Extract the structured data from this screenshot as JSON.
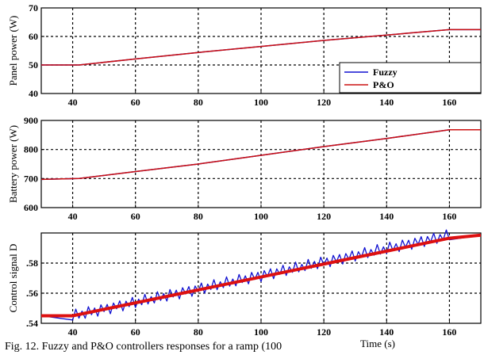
{
  "chart_data": [
    {
      "type": "line",
      "ylabel": "Panel power (W)",
      "xlim": [
        30,
        170
      ],
      "ylim": [
        40,
        70
      ],
      "xticks": [
        40,
        60,
        80,
        100,
        120,
        140,
        160
      ],
      "yticks": [
        40,
        50,
        60,
        70
      ],
      "grid": true,
      "legend": {
        "position": "bottom-right",
        "entries": [
          "Fuzzy",
          "P&O"
        ]
      },
      "series": [
        {
          "name": "Fuzzy",
          "color": "#1010d0",
          "x": [
            30,
            42,
            60,
            80,
            100,
            120,
            140,
            160,
            170
          ],
          "y": [
            50,
            50,
            52.1,
            54.4,
            56.5,
            58.6,
            60.5,
            62.4,
            62.4
          ]
        },
        {
          "name": "P&O",
          "color": "#cc1010",
          "x": [
            30,
            42,
            60,
            80,
            100,
            120,
            140,
            160,
            170
          ],
          "y": [
            50,
            50,
            52.1,
            54.4,
            56.5,
            58.6,
            60.5,
            62.4,
            62.4
          ]
        }
      ]
    },
    {
      "type": "line",
      "ylabel": "Battery power (W)",
      "xlim": [
        30,
        170
      ],
      "ylim": [
        600,
        900
      ],
      "xticks": [
        40,
        60,
        80,
        100,
        120,
        140,
        160
      ],
      "yticks": [
        600,
        700,
        800,
        900
      ],
      "grid": true,
      "series": [
        {
          "name": "Fuzzy",
          "color": "#1010d0",
          "x": [
            30,
            42,
            60,
            80,
            100,
            120,
            140,
            160,
            170
          ],
          "y": [
            697,
            700,
            724,
            750,
            780,
            810,
            838,
            868,
            868
          ]
        },
        {
          "name": "P&O",
          "color": "#cc1010",
          "x": [
            30,
            42,
            60,
            80,
            100,
            120,
            140,
            160,
            170
          ],
          "y": [
            697,
            700,
            724,
            750,
            780,
            810,
            838,
            868,
            868
          ]
        }
      ]
    },
    {
      "type": "line",
      "ylabel": "Control signal D",
      "xlabel": "Time (s)",
      "xlim": [
        30,
        170
      ],
      "ylim": [
        0.54,
        0.6
      ],
      "xticks": [
        40,
        60,
        80,
        100,
        120,
        140,
        160
      ],
      "yticks": [
        0.54,
        0.56,
        0.58
      ],
      "ytick_labels": [
        ".54",
        ".56",
        ".58"
      ],
      "grid": true,
      "series": [
        {
          "name": "Fuzzy",
          "color": "#1010d0",
          "x": [
            30,
            40,
            160,
            170
          ],
          "y": [
            0.545,
            0.545,
            0.5985,
            0.5985
          ],
          "oscillation_amplitude": 0.004,
          "oscillation_period_s": 2
        },
        {
          "name": "P&O",
          "color": "#dd1010",
          "x": [
            30,
            40,
            160,
            170
          ],
          "y": [
            0.545,
            0.545,
            0.5965,
            0.5985
          ]
        }
      ]
    }
  ],
  "caption": "Fig. 12. Fuzzy and P&O controllers responses for a ramp (100"
}
